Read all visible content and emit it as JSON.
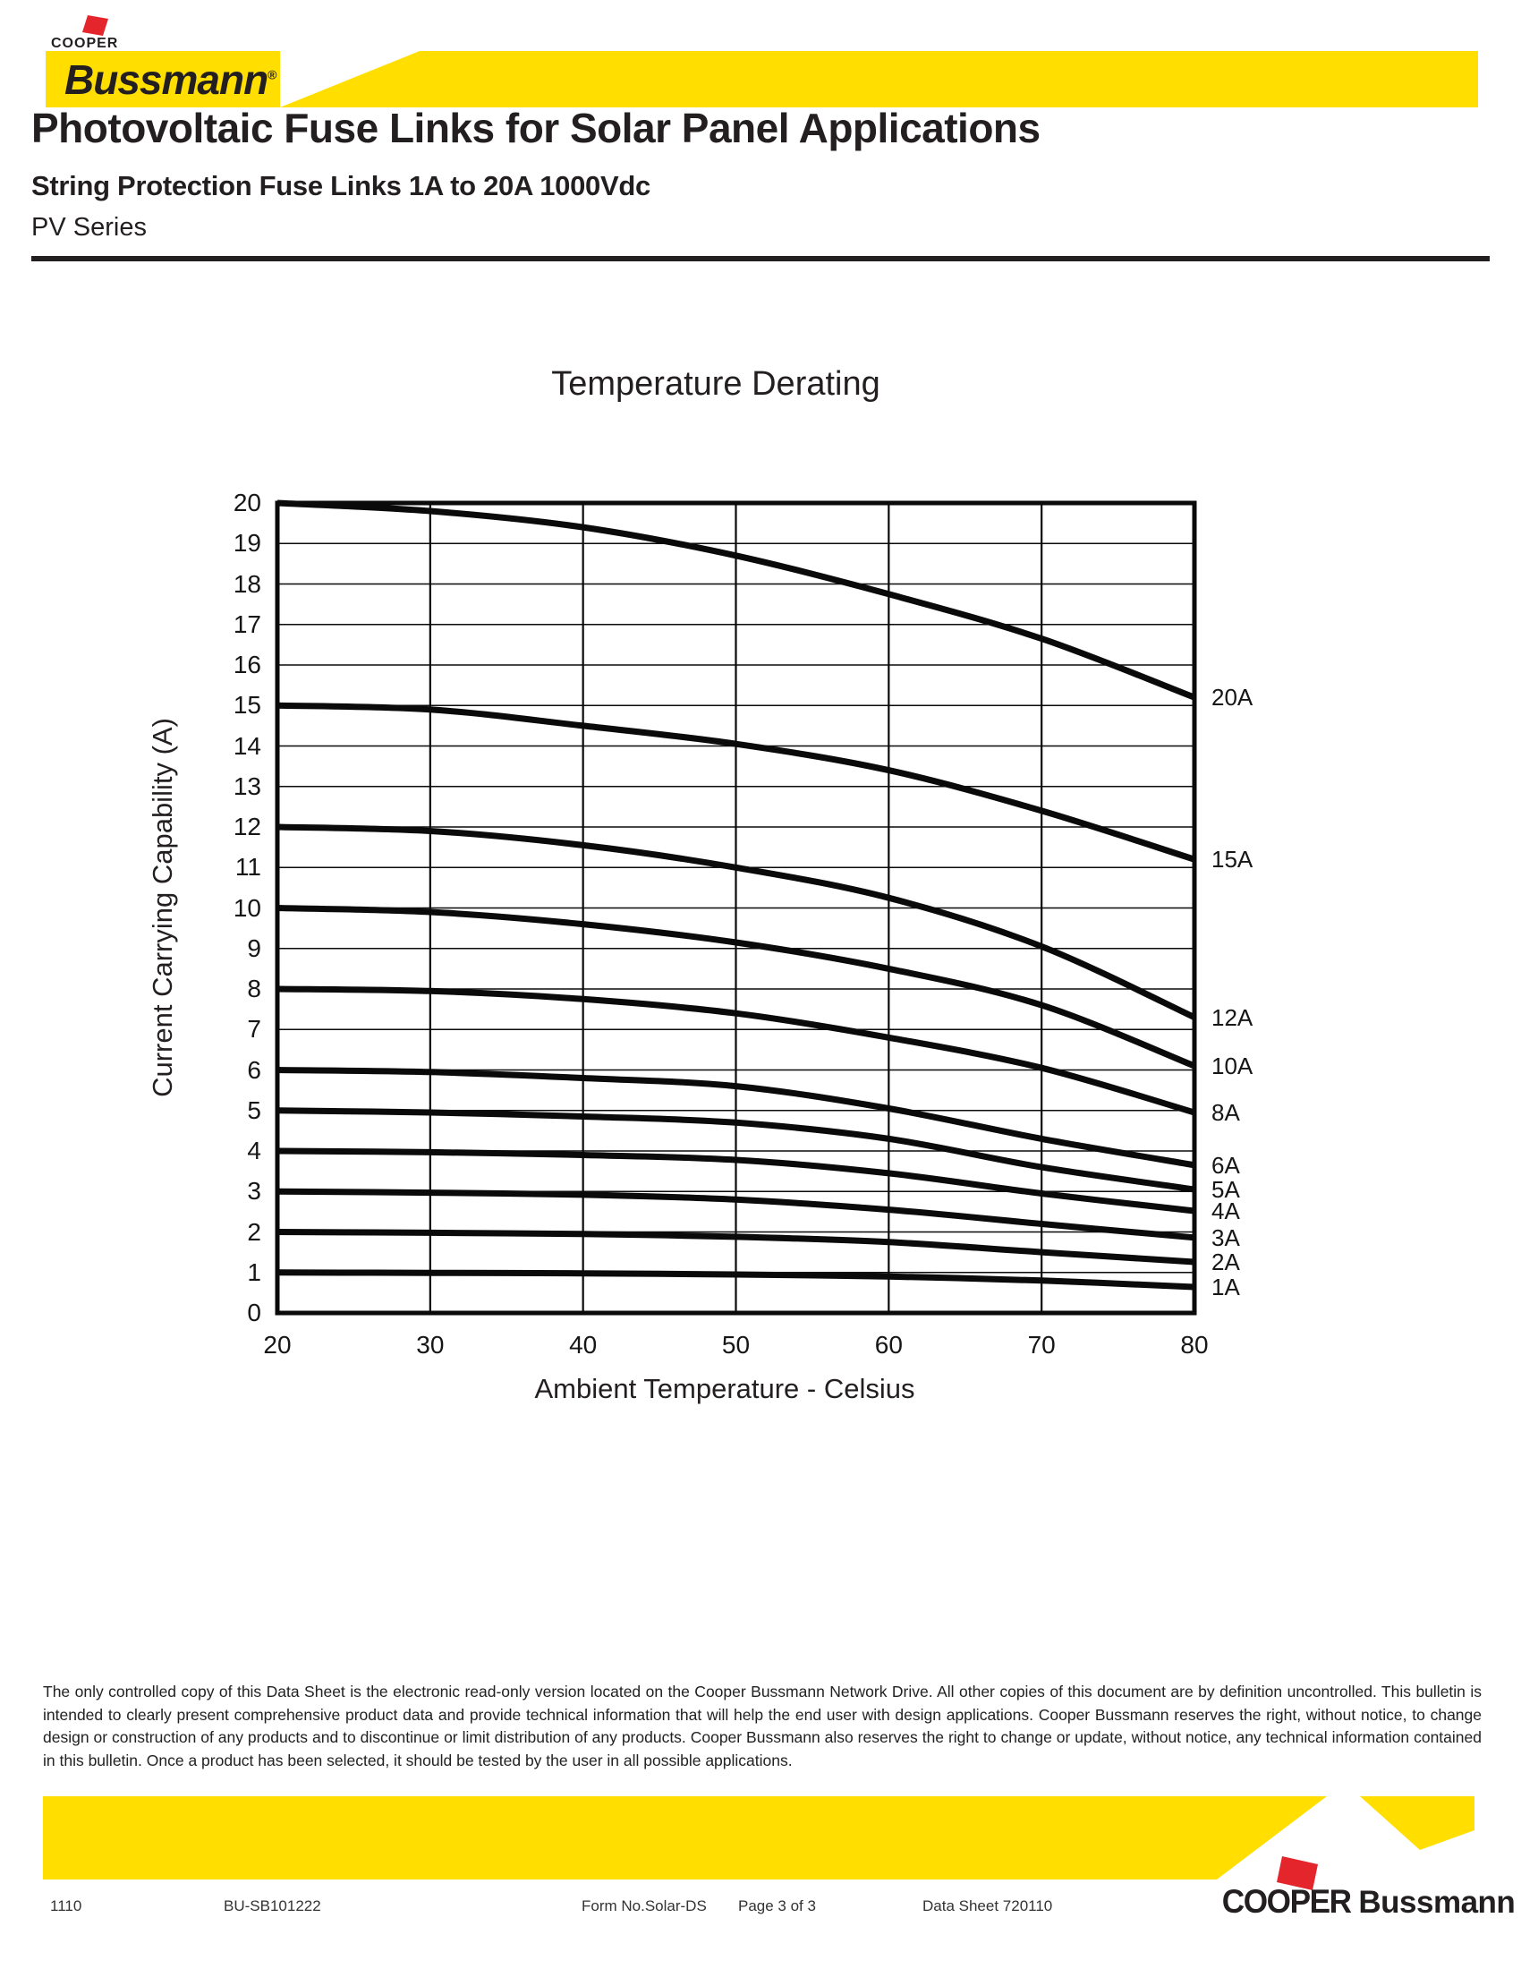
{
  "page": {
    "background": "#ffffff",
    "ink": "#231f20",
    "yellow": "#FFDE00",
    "red": "#E4252B"
  },
  "header": {
    "cooper_small": "COOPER",
    "bussmann": "Bussmann",
    "reg_mark": "®",
    "title": "Photovoltaic Fuse Links for Solar Panel Applications",
    "subtitle": "String Protection Fuse Links 1A to 20A 1000Vdc",
    "series_line": "PV Series"
  },
  "chart_data": {
    "type": "line",
    "title": "Temperature Derating",
    "xlabel": "Ambient Temperature - Celsius",
    "ylabel": "Current Carrying Capability (A)",
    "xlim": [
      20,
      80
    ],
    "ylim": [
      0,
      20
    ],
    "x": [
      20,
      30,
      40,
      50,
      60,
      70,
      80
    ],
    "x_ticks": [
      20,
      30,
      40,
      50,
      60,
      70,
      80
    ],
    "y_ticks": [
      0,
      1,
      2,
      3,
      4,
      5,
      6,
      7,
      8,
      9,
      10,
      11,
      12,
      13,
      14,
      15,
      16,
      17,
      18,
      19,
      20
    ],
    "grid": true,
    "line_color": "#0a0a0a",
    "legend_position": "right of curve ends",
    "series": [
      {
        "name": "20A",
        "values": [
          20,
          19.8,
          19.4,
          18.7,
          17.75,
          16.65,
          15.2
        ]
      },
      {
        "name": "15A",
        "values": [
          15,
          14.9,
          14.5,
          14.05,
          13.4,
          12.4,
          11.2
        ]
      },
      {
        "name": "12A",
        "values": [
          12,
          11.9,
          11.55,
          11.0,
          10.25,
          9.05,
          7.3
        ]
      },
      {
        "name": "10A",
        "values": [
          10,
          9.9,
          9.6,
          9.15,
          8.5,
          7.6,
          6.1
        ]
      },
      {
        "name": "8A",
        "values": [
          8,
          7.95,
          7.75,
          7.4,
          6.8,
          6.05,
          4.95
        ]
      },
      {
        "name": "6A",
        "values": [
          6,
          5.95,
          5.8,
          5.6,
          5.05,
          4.3,
          3.65
        ]
      },
      {
        "name": "5A",
        "values": [
          5,
          4.95,
          4.85,
          4.7,
          4.3,
          3.6,
          3.05
        ]
      },
      {
        "name": "4A",
        "values": [
          4,
          3.97,
          3.9,
          3.78,
          3.45,
          2.95,
          2.52
        ]
      },
      {
        "name": "3A",
        "values": [
          3,
          2.97,
          2.92,
          2.8,
          2.55,
          2.2,
          1.86
        ]
      },
      {
        "name": "2A",
        "values": [
          2,
          1.98,
          1.95,
          1.88,
          1.75,
          1.5,
          1.26
        ]
      },
      {
        "name": "1A",
        "values": [
          1,
          0.99,
          0.98,
          0.95,
          0.9,
          0.8,
          0.64
        ]
      }
    ]
  },
  "legal": {
    "text": "The only controlled copy of this Data Sheet is the electronic read-only version located on the Cooper Bussmann Network Drive. All other copies of this document are by definition uncontrolled. This bulletin is intended to clearly present comprehensive product data and provide technical information that will help the end user with design applications. Cooper Bussmann reserves the right, without notice, to change design or construction of any products and to discontinue or limit distribution of any products. Cooper Bussmann also reserves the right to change or update, without notice, any technical information contained in this bulletin. Once a product has been selected, it should be tested by the user in all possible applications."
  },
  "footer": {
    "items": [
      "1110",
      "BU-SB101222",
      "Form No.Solar-DS",
      "Page 3 of 3",
      "Data Sheet 720110"
    ],
    "item_x": [
      56,
      250,
      650,
      825,
      1031
    ],
    "logo_cooper": "COOPER",
    "logo_bussmann": "Bussmann"
  }
}
